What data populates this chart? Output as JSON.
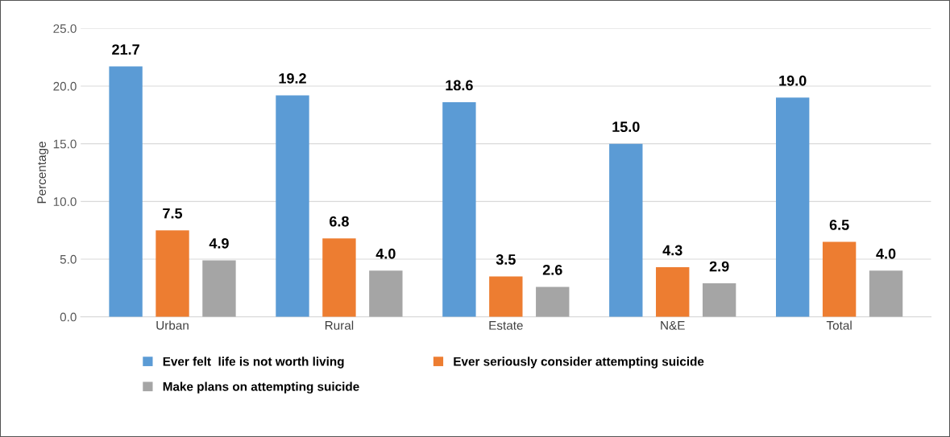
{
  "chart_data": {
    "type": "bar",
    "ylabel": "Percentage",
    "categories": [
      "Urban",
      "Rural",
      "Estate",
      "N&E",
      "Total"
    ],
    "series": [
      {
        "name": "Ever felt  life is not worth living",
        "color": "#5b9bd5",
        "values": [
          21.7,
          19.2,
          18.6,
          15.0,
          19.0
        ],
        "value_labels": [
          "21.7",
          "19.2",
          "18.6",
          "15.0",
          "19.0"
        ]
      },
      {
        "name": "Ever seriously consider attempting suicide",
        "color": "#ed7d31",
        "values": [
          7.5,
          6.8,
          3.5,
          4.3,
          6.5
        ],
        "value_labels": [
          "7.5",
          "6.8",
          "3.5",
          "4.3",
          "6.5"
        ]
      },
      {
        "name": "Make plans on attempting suicide",
        "color": "#a5a5a5",
        "values": [
          4.9,
          4.0,
          2.6,
          2.9,
          4.0
        ],
        "value_labels": [
          "4.9",
          "4.0",
          "2.6",
          "2.9",
          "4.0"
        ]
      }
    ],
    "ylim": [
      0,
      25
    ],
    "yticks": [
      {
        "value": 0,
        "label": "0.0"
      },
      {
        "value": 5,
        "label": "5.0"
      },
      {
        "value": 10,
        "label": "10.0"
      },
      {
        "value": 15,
        "label": "15.0"
      },
      {
        "value": 20,
        "label": "20.0"
      },
      {
        "value": 25,
        "label": "25.0"
      }
    ],
    "grid": "y",
    "legend": "bottom"
  }
}
